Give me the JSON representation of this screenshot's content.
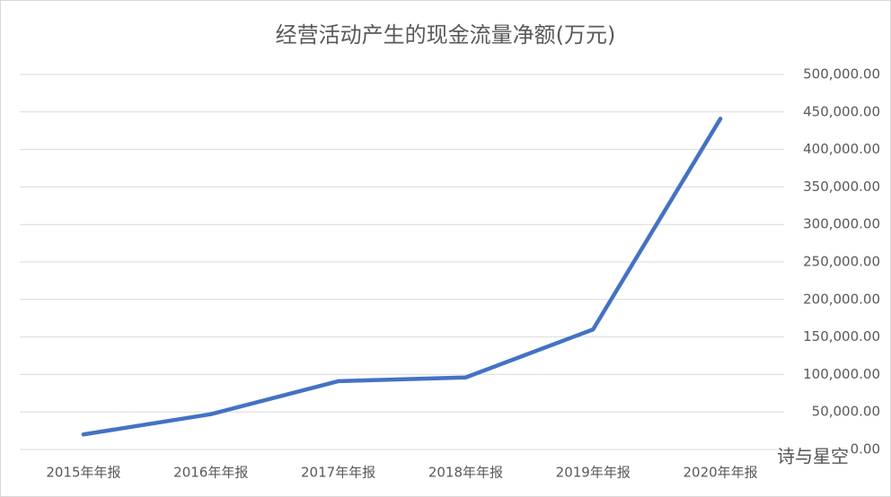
{
  "chart_data": {
    "type": "line",
    "title": "经营活动产生的现金流量净额(万元)",
    "categories": [
      "2015年年报",
      "2016年年报",
      "2017年年报",
      "2018年年报",
      "2019年年报",
      "2020年年报"
    ],
    "values": [
      20000,
      47000,
      91000,
      96000,
      160000,
      441000
    ],
    "color": "#4472c4",
    "ylim": [
      0,
      500000
    ],
    "yticks": [
      {
        "value": 0,
        "label": "0.00"
      },
      {
        "value": 50000,
        "label": "50,000.00"
      },
      {
        "value": 100000,
        "label": "100,000.00"
      },
      {
        "value": 150000,
        "label": "150,000.00"
      },
      {
        "value": 200000,
        "label": "200,000.00"
      },
      {
        "value": 250000,
        "label": "250,000.00"
      },
      {
        "value": 300000,
        "label": "300,000.00"
      },
      {
        "value": 350000,
        "label": "350,000.00"
      },
      {
        "value": 400000,
        "label": "400,000.00"
      },
      {
        "value": 450000,
        "label": "450,000.00"
      },
      {
        "value": 500000,
        "label": "500,000.00"
      }
    ],
    "grid": true,
    "yaxis_side": "right",
    "watermark": "诗与星空"
  }
}
